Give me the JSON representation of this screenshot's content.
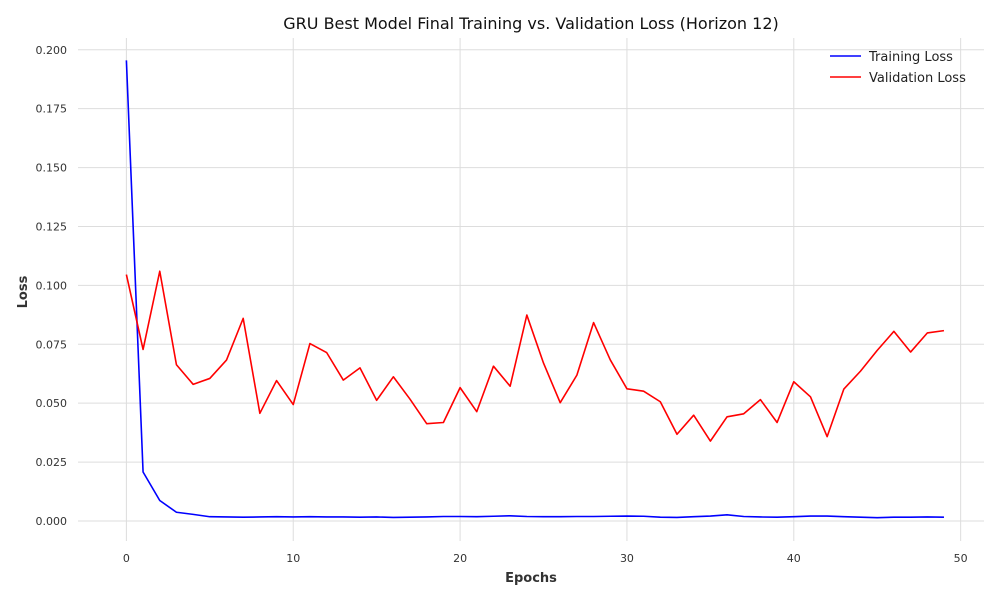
{
  "chart_data": {
    "type": "line",
    "title": "GRU Best Model Final Training vs. Validation Loss (Horizon 12)",
    "xlabel": "Epochs",
    "ylabel": "Loss",
    "xlim": [
      -2.9,
      51.4
    ],
    "ylim": [
      -0.0085,
      0.205
    ],
    "xticks": [
      0,
      10,
      20,
      30,
      40,
      50
    ],
    "yticks": [
      0.0,
      0.025,
      0.05,
      0.075,
      0.1,
      0.125,
      0.15,
      0.175,
      0.2
    ],
    "ytick_labels": [
      "0.000",
      "0.025",
      "0.050",
      "0.075",
      "0.100",
      "0.125",
      "0.150",
      "0.175",
      "0.200"
    ],
    "grid": true,
    "legend_position": "top-right",
    "x": [
      0,
      1,
      2,
      3,
      4,
      5,
      6,
      7,
      8,
      9,
      10,
      11,
      12,
      13,
      14,
      15,
      16,
      17,
      18,
      19,
      20,
      21,
      22,
      23,
      24,
      25,
      26,
      27,
      28,
      29,
      30,
      31,
      32,
      33,
      34,
      35,
      36,
      37,
      38,
      39,
      40,
      41,
      42,
      43,
      44,
      45,
      46,
      47,
      48,
      49
    ],
    "series": [
      {
        "name": "Training Loss",
        "color": "#0000ff",
        "values": [
          0.1955,
          0.0208,
          0.0087,
          0.0037,
          0.0028,
          0.0018,
          0.0017,
          0.0016,
          0.0017,
          0.0018,
          0.0017,
          0.0018,
          0.0017,
          0.0017,
          0.0016,
          0.0017,
          0.0015,
          0.0016,
          0.0017,
          0.0019,
          0.0019,
          0.0018,
          0.002,
          0.0022,
          0.0019,
          0.0018,
          0.0018,
          0.0019,
          0.0019,
          0.002,
          0.0021,
          0.002,
          0.0016,
          0.0015,
          0.0018,
          0.0021,
          0.0026,
          0.0019,
          0.0017,
          0.0016,
          0.0018,
          0.0021,
          0.0021,
          0.0018,
          0.0016,
          0.0014,
          0.0016,
          0.0016,
          0.0017,
          0.0016
        ]
      },
      {
        "name": "Validation Loss",
        "color": "#ff0000",
        "values": [
          0.1046,
          0.0728,
          0.106,
          0.0663,
          0.058,
          0.0605,
          0.0683,
          0.086,
          0.0457,
          0.0596,
          0.0494,
          0.0753,
          0.0715,
          0.0598,
          0.065,
          0.0512,
          0.0612,
          0.0517,
          0.0413,
          0.0418,
          0.0566,
          0.0464,
          0.0657,
          0.0572,
          0.0874,
          0.067,
          0.0502,
          0.0619,
          0.0842,
          0.0684,
          0.0561,
          0.0551,
          0.0506,
          0.0368,
          0.0449,
          0.0339,
          0.0442,
          0.0455,
          0.0515,
          0.0418,
          0.0591,
          0.0527,
          0.0358,
          0.056,
          0.0636,
          0.0724,
          0.0805,
          0.0717,
          0.0798,
          0.0808
        ]
      }
    ]
  }
}
